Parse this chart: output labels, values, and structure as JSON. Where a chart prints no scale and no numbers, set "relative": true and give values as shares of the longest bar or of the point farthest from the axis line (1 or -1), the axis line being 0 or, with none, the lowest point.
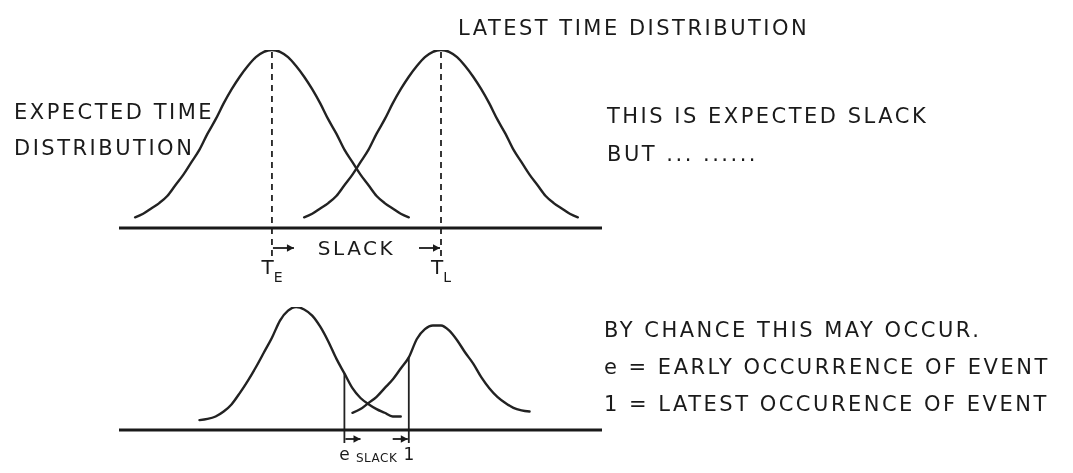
{
  "chart_data": [
    {
      "type": "line",
      "relative": true,
      "categories": [
        null,
        null,
        null,
        null,
        null,
        null,
        null,
        null,
        null,
        null,
        null,
        null,
        null,
        null,
        null,
        null,
        null,
        null,
        null,
        "T$_{E}$",
        null,
        null,
        null,
        null,
        null,
        null,
        null,
        null,
        null,
        null,
        null,
        null,
        null,
        null,
        null,
        null,
        null,
        null,
        null,
        null,
        "T$_{L}$",
        null,
        null,
        null,
        null,
        null,
        null,
        null,
        null,
        null,
        null,
        null,
        null,
        null,
        null,
        null,
        null,
        null,
        null,
        null,
        null
      ],
      "series": [
        {
          "name": "EXPECTED TIME DISTRIBUTION",
          "color": "#222222",
          "values": [
            null,
            null,
            0.06,
            0.08,
            0.11,
            0.14,
            0.18,
            0.24,
            0.3,
            0.37,
            0.44,
            0.53,
            0.61,
            0.7,
            0.78,
            0.85,
            0.91,
            0.96,
            0.99,
            1,
            0.99,
            0.96,
            0.91,
            0.85,
            0.78,
            0.7,
            0.61,
            0.53,
            0.44,
            0.37,
            0.3,
            0.24,
            0.18,
            0.14,
            0.11,
            0.08,
            0.06,
            null,
            null,
            null,
            null,
            null,
            null,
            null,
            null,
            null,
            null,
            null,
            null,
            null,
            null,
            null,
            null,
            null,
            null,
            null,
            null,
            null,
            null,
            null,
            null
          ]
        },
        {
          "name": "LATEST TIME DISTRIBUTION",
          "color": "#222222",
          "values": [
            null,
            null,
            null,
            null,
            null,
            null,
            null,
            null,
            null,
            null,
            null,
            null,
            null,
            null,
            null,
            null,
            null,
            null,
            null,
            null,
            null,
            null,
            null,
            0.06,
            0.08,
            0.11,
            0.14,
            0.18,
            0.24,
            0.3,
            0.37,
            0.44,
            0.53,
            0.61,
            0.7,
            0.78,
            0.85,
            0.91,
            0.96,
            0.99,
            1,
            0.99,
            0.96,
            0.91,
            0.85,
            0.78,
            0.7,
            0.61,
            0.53,
            0.44,
            0.37,
            0.3,
            0.24,
            0.18,
            0.14,
            0.11,
            0.08,
            0.06,
            null,
            null,
            null
          ]
        }
      ],
      "ref_lines": [
        {
          "axis": "x",
          "value": "T$_{E}$",
          "line_style": "dashed",
          "color": "#222222"
        },
        {
          "axis": "x",
          "value": "T$_{L}$",
          "line_style": "dashed",
          "color": "#222222"
        }
      ],
      "annotations": [
        "SLACK",
        "THIS IS EXPECTED SLACK",
        "BUT ... ......"
      ]
    },
    {
      "type": "line",
      "relative": true,
      "categories": [
        null,
        null,
        null,
        null,
        null,
        null,
        null,
        null,
        null,
        null,
        null,
        null,
        null,
        null,
        null,
        null,
        null,
        null,
        null,
        null,
        null,
        null,
        null,
        null,
        null,
        null,
        null,
        null,
        "e",
        null,
        null,
        null,
        null,
        null,
        null,
        null,
        "1",
        null,
        null,
        null,
        null,
        null,
        null,
        null,
        null,
        null,
        null,
        null,
        null,
        null,
        null,
        null,
        null,
        null,
        null,
        null,
        null,
        null,
        null,
        null,
        null
      ],
      "series": [
        {
          "color": "#222222",
          "values": [
            null,
            null,
            null,
            null,
            null,
            null,
            null,
            null,
            null,
            null,
            0.08,
            0.09,
            0.11,
            0.15,
            0.21,
            0.3,
            0.4,
            0.51,
            0.63,
            0.75,
            0.89,
            0.97,
            1,
            0.98,
            0.93,
            0.84,
            0.72,
            0.58,
            0.46,
            0.34,
            0.26,
            0.21,
            0.17,
            0.14,
            0.11,
            0.11,
            null,
            null,
            null,
            null,
            null,
            null,
            null,
            null,
            null,
            null,
            null,
            null,
            null,
            null,
            null,
            null,
            null,
            null,
            null,
            null,
            null,
            null,
            null,
            null,
            null
          ]
        },
        {
          "color": "#222222",
          "values": [
            null,
            null,
            null,
            null,
            null,
            null,
            null,
            null,
            null,
            null,
            null,
            null,
            null,
            null,
            null,
            null,
            null,
            null,
            null,
            null,
            null,
            null,
            null,
            null,
            null,
            null,
            null,
            null,
            null,
            0.14,
            0.17,
            0.22,
            0.27,
            0.34,
            0.41,
            0.5,
            0.59,
            0.74,
            0.82,
            0.85,
            0.85,
            0.81,
            0.73,
            0.63,
            0.54,
            0.43,
            0.34,
            0.27,
            0.22,
            0.18,
            0.16,
            0.15,
            null,
            null,
            null,
            null,
            null,
            null,
            null,
            null,
            null
          ]
        }
      ],
      "ref_lines": [
        {
          "axis": "x",
          "value": "e",
          "color": "#222222"
        },
        {
          "axis": "x",
          "value": "1",
          "color": "#222222"
        }
      ],
      "annotations": [
        "SLACK",
        "BY CHANCE THIS MAY OCCUR.",
        "e = EARLY OCCURRENCE OF EVENT",
        "1 = LATEST OCCURENCE OF EVENT"
      ]
    }
  ]
}
